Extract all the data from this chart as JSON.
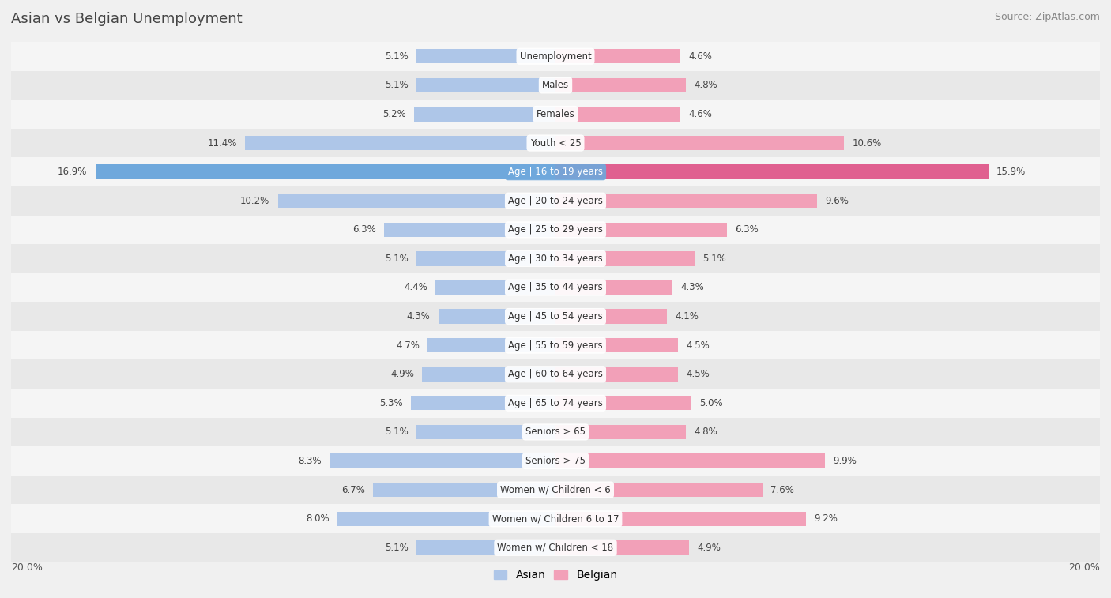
{
  "title": "Asian vs Belgian Unemployment",
  "source": "Source: ZipAtlas.com",
  "categories": [
    "Unemployment",
    "Males",
    "Females",
    "Youth < 25",
    "Age | 16 to 19 years",
    "Age | 20 to 24 years",
    "Age | 25 to 29 years",
    "Age | 30 to 34 years",
    "Age | 35 to 44 years",
    "Age | 45 to 54 years",
    "Age | 55 to 59 years",
    "Age | 60 to 64 years",
    "Age | 65 to 74 years",
    "Seniors > 65",
    "Seniors > 75",
    "Women w/ Children < 6",
    "Women w/ Children 6 to 17",
    "Women w/ Children < 18"
  ],
  "asian_values": [
    5.1,
    5.1,
    5.2,
    11.4,
    16.9,
    10.2,
    6.3,
    5.1,
    4.4,
    4.3,
    4.7,
    4.9,
    5.3,
    5.1,
    8.3,
    6.7,
    8.0,
    5.1
  ],
  "belgian_values": [
    4.6,
    4.8,
    4.6,
    10.6,
    15.9,
    9.6,
    6.3,
    5.1,
    4.3,
    4.1,
    4.5,
    4.5,
    5.0,
    4.8,
    9.9,
    7.6,
    9.2,
    4.9
  ],
  "asian_color": "#aec6e8",
  "belgian_color": "#f2a0b8",
  "asian_highlight_color": "#6fa8dc",
  "belgian_highlight_color": "#e06090",
  "highlight_row": 4,
  "bg_row_even": "#f5f5f5",
  "bg_row_odd": "#e8e8e8",
  "axis_limit": 20.0,
  "bar_height": 0.5,
  "legend_asian": "Asian",
  "legend_belgian": "Belgian",
  "title_fontsize": 13,
  "source_fontsize": 9,
  "label_fontsize": 8.5,
  "cat_fontsize": 8.5,
  "axis_label_fontsize": 9
}
